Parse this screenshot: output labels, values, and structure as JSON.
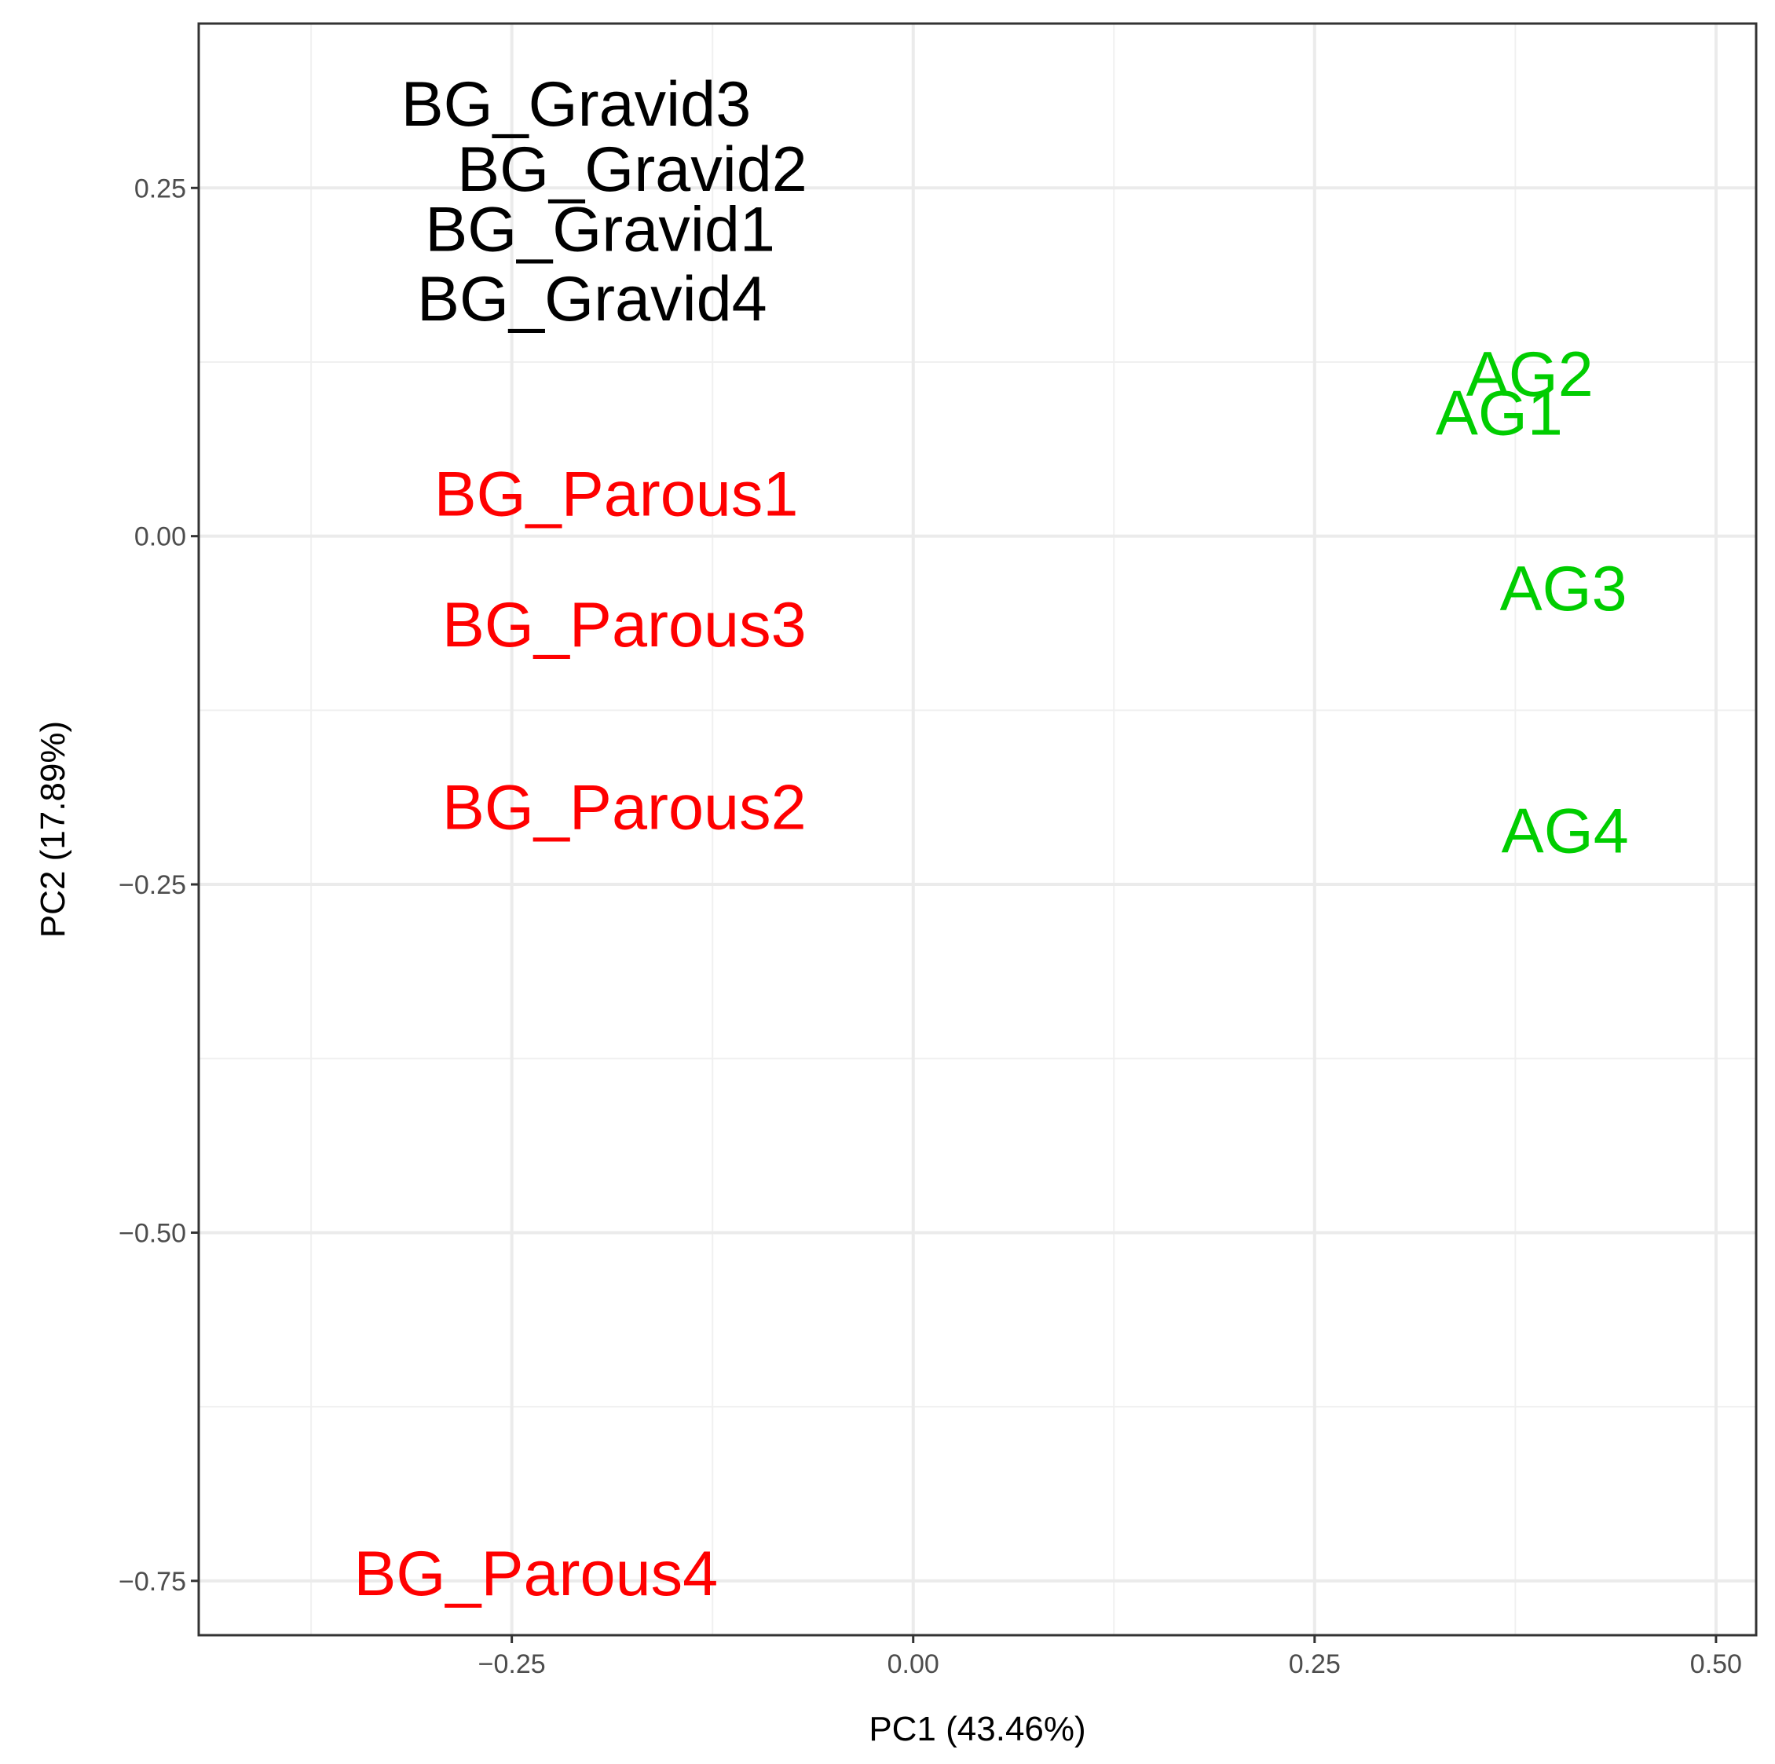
{
  "chart_data": {
    "type": "scatter",
    "title": "",
    "xlabel": "PC1 (43.46%)",
    "ylabel": "PC2 (17.89%)",
    "xlim": [
      -0.445,
      0.525
    ],
    "ylim": [
      -0.789,
      0.368
    ],
    "x_ticks": [
      -0.25,
      0.0,
      0.25,
      0.5
    ],
    "x_tick_labels": [
      "−0.25",
      "0.00",
      "0.25",
      "0.50"
    ],
    "y_ticks": [
      -0.75,
      -0.5,
      -0.25,
      0.0,
      0.25
    ],
    "y_tick_labels": [
      "−0.75",
      "−0.50",
      "−0.25",
      "0.00",
      "0.25"
    ],
    "x_minor": [
      -0.375,
      -0.125,
      0.125,
      0.375
    ],
    "y_minor": [
      -0.625,
      -0.375,
      -0.125,
      0.125
    ],
    "grid": true,
    "legend": "none",
    "series": [
      {
        "color": "#000000",
        "points": [
          {
            "label": "BG_Gravid3",
            "x": -0.21,
            "y": 0.31
          },
          {
            "label": "BG_Gravid2",
            "x": -0.175,
            "y": 0.263
          },
          {
            "label": "BG_Gravid1",
            "x": -0.195,
            "y": 0.22
          },
          {
            "label": "BG_Gravid4",
            "x": -0.2,
            "y": 0.17
          }
        ]
      },
      {
        "color": "#ff0000",
        "points": [
          {
            "label": "BG_Parous1",
            "x": -0.185,
            "y": 0.03
          },
          {
            "label": "BG_Parous3",
            "x": -0.18,
            "y": -0.064
          },
          {
            "label": "BG_Parous2",
            "x": -0.18,
            "y": -0.195
          },
          {
            "label": "BG_Parous4",
            "x": -0.235,
            "y": -0.745
          }
        ]
      },
      {
        "color": "#00cd00",
        "points": [
          {
            "label": "AG2",
            "x": 0.384,
            "y": 0.116
          },
          {
            "label": "AG1",
            "x": 0.365,
            "y": 0.088
          },
          {
            "label": "AG3",
            "x": 0.405,
            "y": -0.038
          },
          {
            "label": "AG4",
            "x": 0.406,
            "y": -0.212
          }
        ]
      }
    ]
  }
}
